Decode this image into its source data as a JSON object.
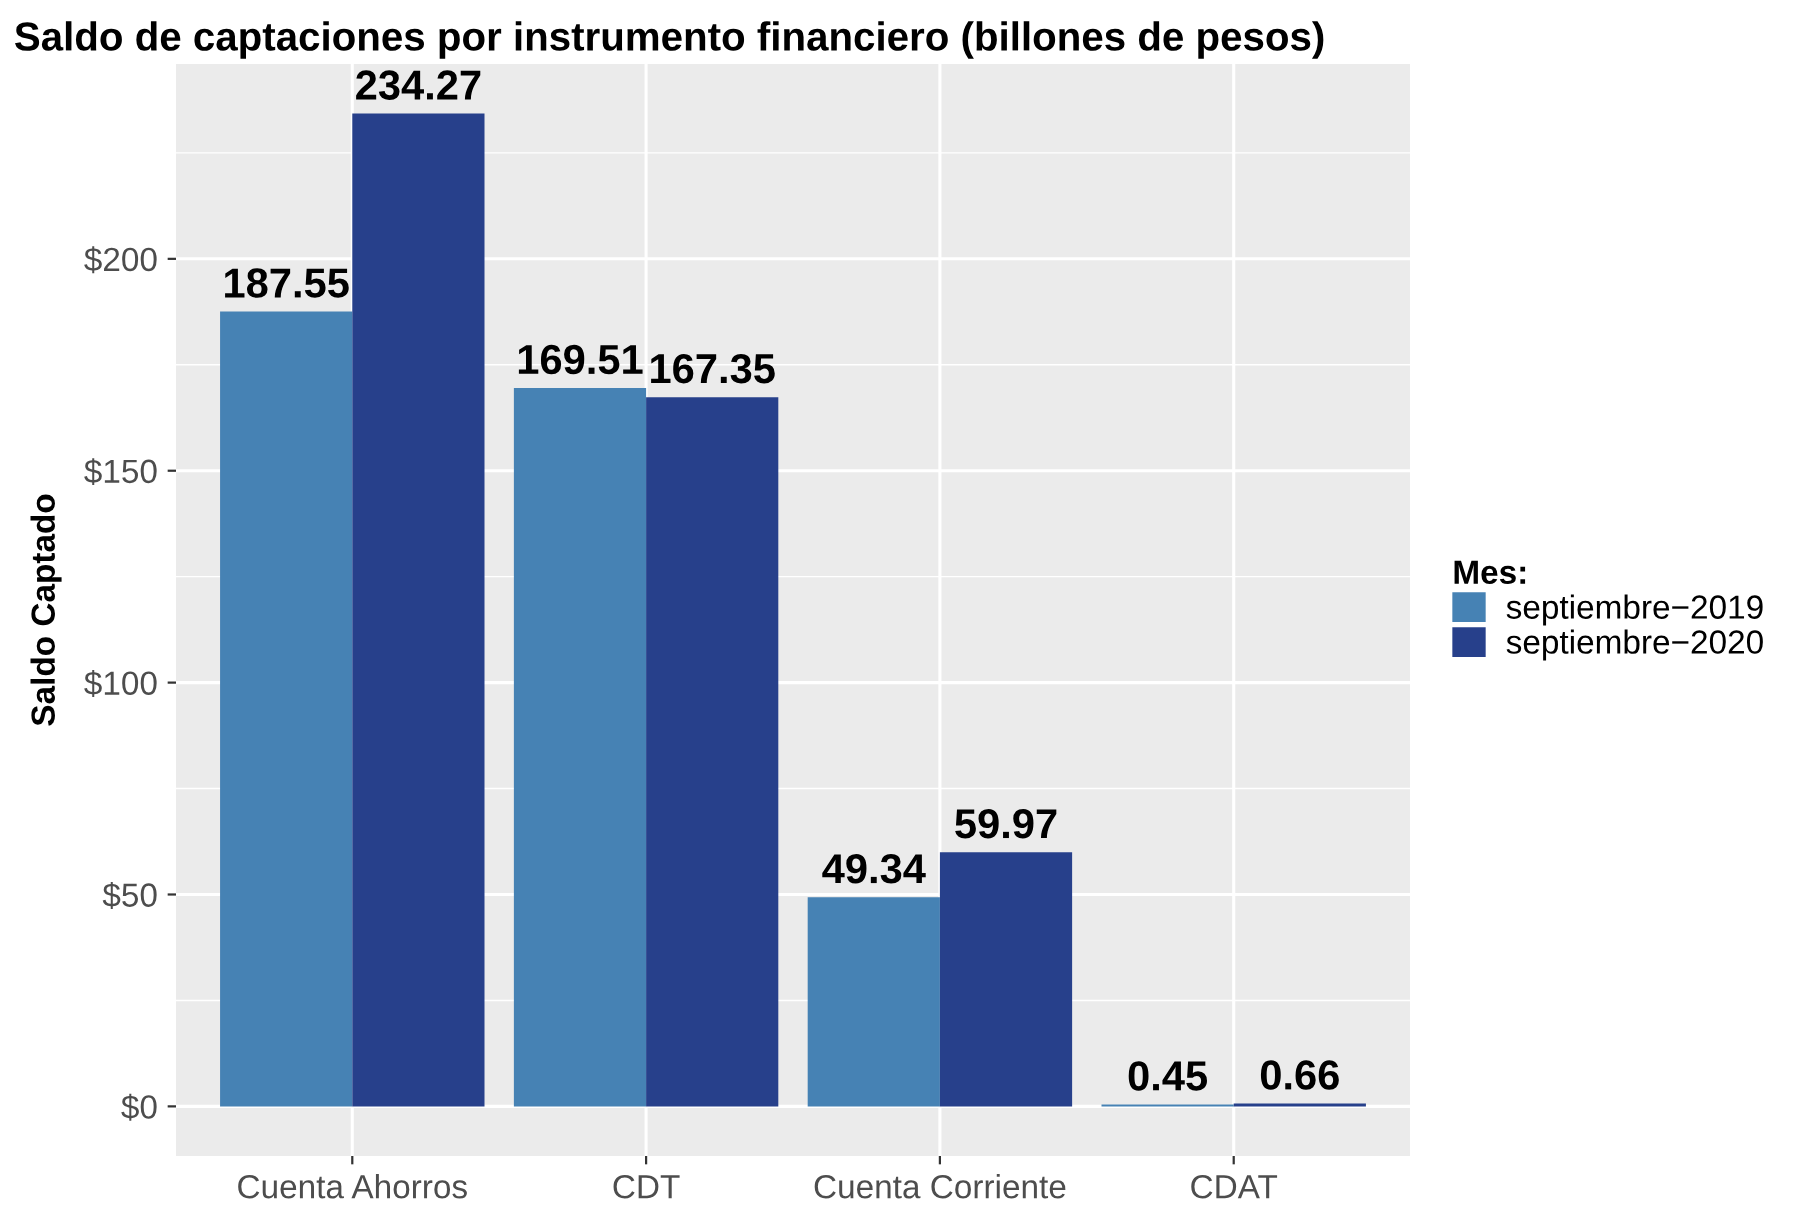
{
  "chart_data": {
    "type": "bar",
    "title": "Saldo de captaciones por instrumento financiero (billones de pesos)",
    "ylabel": "Saldo Captado",
    "legend_title": "Mes:",
    "categories": [
      "Cuenta Ahorros",
      "CDT",
      "Cuenta Corriente",
      "CDAT"
    ],
    "series": [
      {
        "name": "septiembre−2019",
        "color": "#4682b4",
        "values": [
          187.55,
          169.51,
          49.34,
          0.45
        ]
      },
      {
        "name": "septiembre−2020",
        "color": "#27408b",
        "values": [
          234.27,
          167.35,
          59.97,
          0.66
        ]
      }
    ],
    "ylim": [
      -11.71,
      245.98
    ],
    "yticks": [
      {
        "value": 0,
        "label": "$0"
      },
      {
        "value": 25,
        "label": null
      },
      {
        "value": 50,
        "label": "$50"
      },
      {
        "value": 75,
        "label": null
      },
      {
        "value": 100,
        "label": "$100"
      },
      {
        "value": 125,
        "label": null
      },
      {
        "value": 150,
        "label": "$150"
      },
      {
        "value": 175,
        "label": null
      },
      {
        "value": 200,
        "label": "$200"
      },
      {
        "value": 225,
        "label": null
      }
    ],
    "data_labels": true,
    "grid": true,
    "legend": "right"
  }
}
